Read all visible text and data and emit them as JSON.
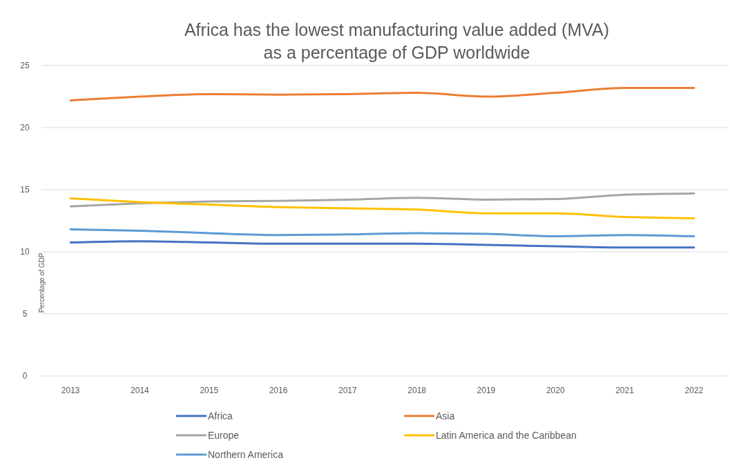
{
  "chart_data": {
    "type": "line",
    "title": "Africa has the lowest manufacturing value added (MVA)\nas a percentage of GDP worldwide",
    "ylabel": "Percentage of GDP",
    "categories": [
      "2013",
      "2014",
      "2015",
      "2016",
      "2017",
      "2018",
      "2019",
      "2020",
      "2021",
      "2022"
    ],
    "series": [
      {
        "name": "Africa",
        "color": "#4472c4",
        "values": [
          10.75,
          10.85,
          10.75,
          10.65,
          10.65,
          10.65,
          10.55,
          10.45,
          10.35,
          10.35
        ]
      },
      {
        "name": "Asia",
        "color": "#ed7d31",
        "values": [
          22.2,
          22.5,
          22.7,
          22.65,
          22.7,
          22.8,
          22.5,
          22.8,
          23.2,
          23.2
        ]
      },
      {
        "name": "Europe",
        "color": "#a5a5a5",
        "values": [
          13.65,
          13.9,
          14.05,
          14.1,
          14.2,
          14.35,
          14.2,
          14.25,
          14.6,
          14.7
        ]
      },
      {
        "name": "Latin America and the Caribbean",
        "color": "#ffc000",
        "values": [
          14.3,
          14.0,
          13.8,
          13.6,
          13.5,
          13.4,
          13.1,
          13.1,
          12.8,
          12.7
        ]
      },
      {
        "name": "Northern America",
        "color": "#5b9bd5",
        "values": [
          11.8,
          11.7,
          11.5,
          11.35,
          11.4,
          11.5,
          11.45,
          11.25,
          11.35,
          11.25
        ]
      }
    ],
    "ylim": [
      0,
      25
    ],
    "yticks": [
      0,
      5,
      10,
      15,
      20,
      25
    ],
    "grid": "y",
    "legend": "bottom",
    "marker": "none",
    "line_style": "solid"
  }
}
